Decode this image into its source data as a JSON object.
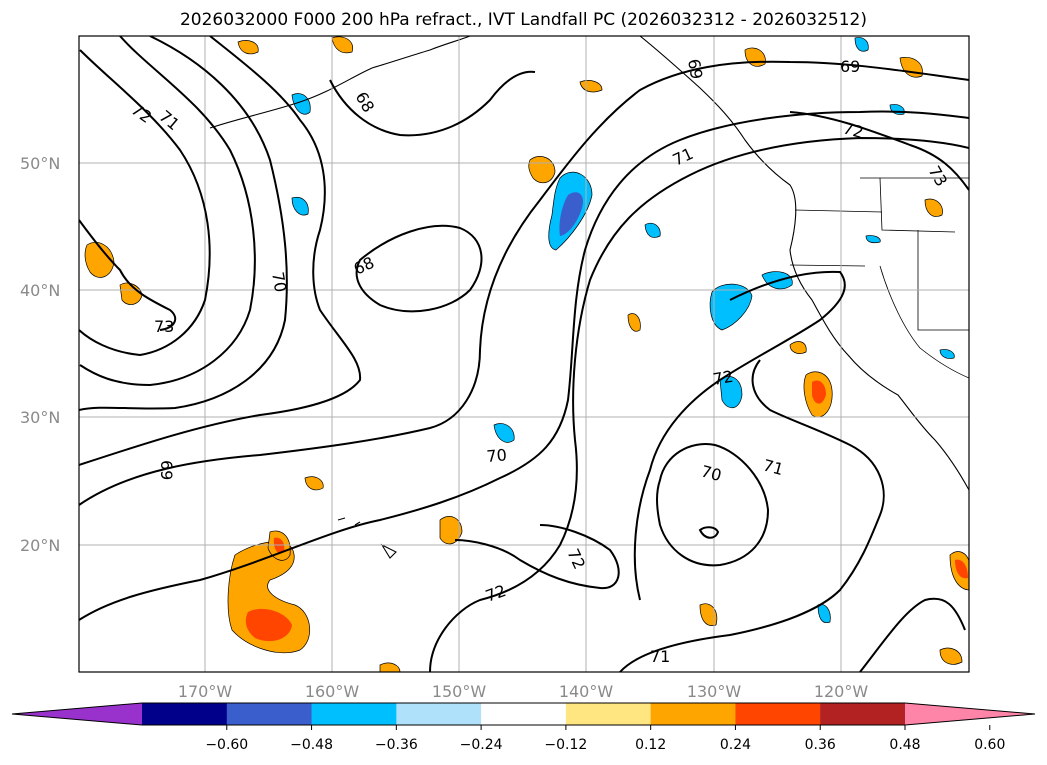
{
  "title": "2026032000 F000 200 hPa refract., IVT Landfall PC (2026032312 - 2026032512)",
  "lat_labels": [
    "50°N",
    "40°N",
    "30°N",
    "20°N"
  ],
  "lon_labels": [
    "170°W",
    "160°W",
    "150°W",
    "140°W",
    "130°W",
    "120°W"
  ],
  "contour_labels": [
    "72",
    "71",
    "68",
    "69",
    "72",
    "73",
    "71",
    "68",
    "70",
    "73",
    "69",
    "70",
    "72",
    "72",
    "70",
    "71",
    "71"
  ],
  "colorbar": {
    "ticks": [
      "−0.60",
      "−0.48",
      "−0.36",
      "−0.24",
      "−0.12",
      "0.12",
      "0.24",
      "0.36",
      "0.48",
      "0.60"
    ],
    "colors": [
      "#9932cc",
      "#00008b",
      "#3a5fcd",
      "#00bfff",
      "#afe1fb",
      "#ffffff",
      "#ffe680",
      "#ffa500",
      "#ff4500",
      "#b22222",
      "#ff85a8"
    ],
    "extend": "both"
  }
}
